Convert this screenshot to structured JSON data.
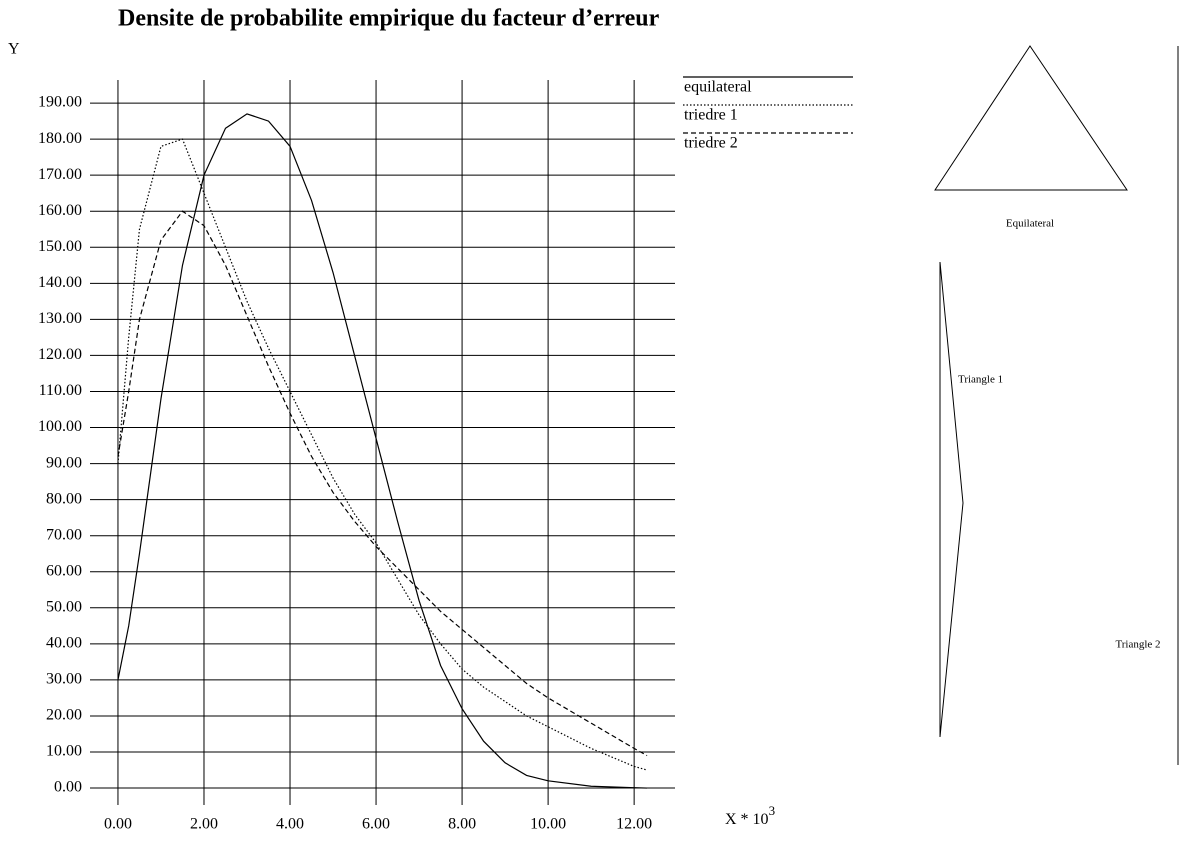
{
  "chart_data": {
    "type": "line",
    "title": "Densite de probabilite empirique du facteur d’erreur",
    "y_label": "Y",
    "x_label": "X * 10",
    "x_label_exponent": "3",
    "x": [
      0,
      0.25,
      0.5,
      1,
      1.5,
      2,
      2.5,
      3,
      3.5,
      4,
      4.5,
      5,
      5.5,
      6,
      6.5,
      7,
      7.5,
      8,
      8.5,
      9,
      9.5,
      10,
      11,
      12,
      12.3
    ],
    "series": [
      {
        "name": "equilateral",
        "color": "#000000",
        "dash": "solid",
        "values": [
          30,
          45,
          65,
          108,
          145,
          170,
          183,
          187,
          185,
          178,
          163,
          143,
          120,
          97,
          74,
          52,
          34,
          22,
          13,
          7,
          3.5,
          2,
          0.5,
          0.1,
          0
        ]
      },
      {
        "name": "triedre 1",
        "color": "#000000",
        "dash": "dotted",
        "values": [
          90,
          125,
          155,
          178,
          180,
          165,
          150,
          135,
          122,
          110,
          98,
          86,
          76,
          68,
          58,
          48,
          40,
          33,
          28,
          24,
          20,
          17,
          11,
          6,
          5
        ]
      },
      {
        "name": "triedre 2",
        "color": "#000000",
        "dash": "dashed",
        "values": [
          92,
          110,
          130,
          152,
          160,
          156,
          145,
          131,
          117,
          104,
          92,
          82,
          74,
          67,
          61,
          55,
          49,
          44,
          39,
          34,
          29,
          25,
          18,
          11,
          9
        ]
      }
    ],
    "xlim": [
      -0.65,
      12.95
    ],
    "ylim": [
      -4.7,
      196.4
    ],
    "xticks": [
      {
        "value": 0,
        "label": "0.00"
      },
      {
        "value": 2,
        "label": "2.00"
      },
      {
        "value": 4,
        "label": "4.00"
      },
      {
        "value": 6,
        "label": "6.00"
      },
      {
        "value": 8,
        "label": "8.00"
      },
      {
        "value": 10,
        "label": "10.00"
      },
      {
        "value": 12,
        "label": "12.00"
      }
    ],
    "yticks": [
      {
        "value": 0,
        "label": "0.00"
      },
      {
        "value": 10,
        "label": "10.00"
      },
      {
        "value": 20,
        "label": "20.00"
      },
      {
        "value": 30,
        "label": "30.00"
      },
      {
        "value": 40,
        "label": "40.00"
      },
      {
        "value": 50,
        "label": "50.00"
      },
      {
        "value": 60,
        "label": "60.00"
      },
      {
        "value": 70,
        "label": "70.00"
      },
      {
        "value": 80,
        "label": "80.00"
      },
      {
        "value": 90,
        "label": "90.00"
      },
      {
        "value": 100,
        "label": "100.00"
      },
      {
        "value": 110,
        "label": "110.00"
      },
      {
        "value": 120,
        "label": "120.00"
      },
      {
        "value": 130,
        "label": "130.00"
      },
      {
        "value": 140,
        "label": "140.00"
      },
      {
        "value": 150,
        "label": "150.00"
      },
      {
        "value": 160,
        "label": "160.00"
      },
      {
        "value": 170,
        "label": "170.00"
      },
      {
        "value": 180,
        "label": "180.00"
      },
      {
        "value": 190,
        "label": "190.00"
      }
    ],
    "grid": true,
    "legend": "top-right"
  },
  "diagrams": {
    "labels": [
      "Equilateral",
      "Triangle 1",
      "Triangle 2"
    ]
  }
}
